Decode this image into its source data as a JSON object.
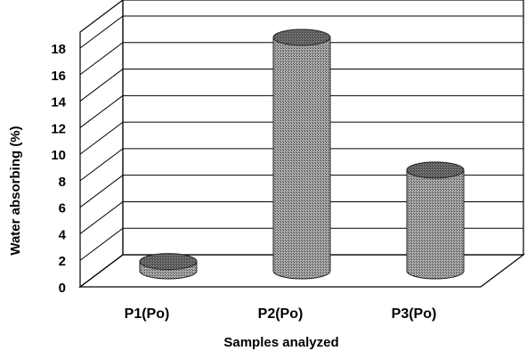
{
  "chart_data": {
    "type": "bar",
    "style": "3d-cylinder",
    "categories": [
      "P1(Po)",
      "P2(Po)",
      "P3(Po)"
    ],
    "values": [
      0.7,
      17.6,
      7.6
    ],
    "xlabel": "Samples analyzed",
    "ylabel": "Water absorbing  (%)",
    "ylim": [
      0,
      18
    ],
    "yticks": [
      "0",
      "2",
      "4",
      "6",
      "8",
      "10",
      "12",
      "14",
      "16",
      "18"
    ],
    "grid": true,
    "legend": "none",
    "colors": {
      "bar": "#8c8c8c",
      "bar_top": "#5a5a5a",
      "grid": "#000000"
    }
  }
}
